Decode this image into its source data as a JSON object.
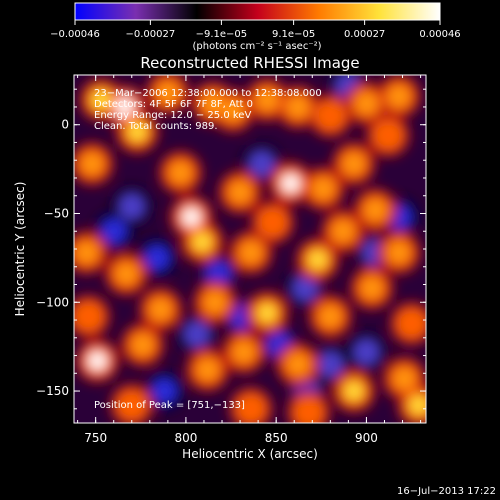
{
  "chart_data": {
    "type": "heatmap",
    "title": "Reconstructed RHESSI Image",
    "xlabel": "Heliocentric X (arcsec)",
    "ylabel": "Heliocentric Y (arcsec)",
    "xlim": [
      738,
      933
    ],
    "ylim": [
      -168,
      28
    ],
    "x_ticks": [
      750,
      800,
      850,
      900
    ],
    "x_tick_labels": [
      "750",
      "800",
      "850",
      "900"
    ],
    "y_ticks": [
      0,
      -50,
      -100,
      -150
    ],
    "y_tick_labels": [
      "0",
      "−50",
      "−100",
      "−150"
    ],
    "colorbar": {
      "min": -0.00046,
      "max": 0.00046,
      "tick_values": [
        -0.00046,
        -0.00027,
        -9.1e-05,
        9.1e-05,
        0.00027,
        0.00046
      ],
      "tick_labels": [
        "−0.00046",
        "−0.00027",
        "−9.1e−05",
        "9.1e−05",
        "0.00027",
        "0.00046"
      ],
      "unit_label": "(photons cm⁻² s⁻¹ asec⁻²)",
      "colors": [
        "#0000ff",
        "#7a2fb0",
        "#000000",
        "#c4001c",
        "#ff7a00",
        "#ffe23a",
        "#ffffff"
      ]
    },
    "info_lines": [
      "23−Mar−2006 12:38:00.000 to 12:38:08.000",
      "Detectors: 4F 5F 6F 7F 8F, Att 0",
      "Energy Range: 12.0 − 25.0 keV",
      "Clean.   Total counts: 989."
    ],
    "peak_label": "Position of Peak = [751,−133]",
    "peak": [
      751,
      -133
    ],
    "sources": [
      {
        "x": 751,
        "y": -133,
        "v": 1.0
      },
      {
        "x": 766,
        "y": 10,
        "v": 0.9
      },
      {
        "x": 753,
        "y": 14,
        "v": 0.8
      },
      {
        "x": 773,
        "y": -4,
        "v": 0.85
      },
      {
        "x": 790,
        "y": 18,
        "v": 0.7
      },
      {
        "x": 815,
        "y": 12,
        "v": 0.65
      },
      {
        "x": 826,
        "y": 8,
        "v": 0.7
      },
      {
        "x": 845,
        "y": 14,
        "v": 0.6
      },
      {
        "x": 862,
        "y": 10,
        "v": 0.6
      },
      {
        "x": 880,
        "y": 5,
        "v": 0.55
      },
      {
        "x": 900,
        "y": 12,
        "v": 0.65
      },
      {
        "x": 918,
        "y": 16,
        "v": 0.6
      },
      {
        "x": 912,
        "y": -6,
        "v": 0.55
      },
      {
        "x": 748,
        "y": -22,
        "v": 0.6
      },
      {
        "x": 797,
        "y": -27,
        "v": 0.7
      },
      {
        "x": 803,
        "y": -52,
        "v": 0.9
      },
      {
        "x": 809,
        "y": -66,
        "v": 0.85
      },
      {
        "x": 830,
        "y": -38,
        "v": 0.6
      },
      {
        "x": 858,
        "y": -33,
        "v": 0.95
      },
      {
        "x": 876,
        "y": -36,
        "v": 0.6
      },
      {
        "x": 893,
        "y": -22,
        "v": 0.7
      },
      {
        "x": 905,
        "y": -48,
        "v": 0.6
      },
      {
        "x": 848,
        "y": -55,
        "v": 0.55
      },
      {
        "x": 836,
        "y": -72,
        "v": 0.6
      },
      {
        "x": 873,
        "y": -76,
        "v": 0.75
      },
      {
        "x": 887,
        "y": -60,
        "v": 0.6
      },
      {
        "x": 918,
        "y": -72,
        "v": 0.7
      },
      {
        "x": 745,
        "y": -72,
        "v": 0.6
      },
      {
        "x": 767,
        "y": -84,
        "v": 0.65
      },
      {
        "x": 746,
        "y": -108,
        "v": 0.55
      },
      {
        "x": 786,
        "y": -104,
        "v": 0.7
      },
      {
        "x": 816,
        "y": -100,
        "v": 0.65
      },
      {
        "x": 845,
        "y": -106,
        "v": 0.75
      },
      {
        "x": 880,
        "y": -108,
        "v": 0.65
      },
      {
        "x": 903,
        "y": -92,
        "v": 0.6
      },
      {
        "x": 925,
        "y": -112,
        "v": 0.55
      },
      {
        "x": 776,
        "y": -124,
        "v": 0.6
      },
      {
        "x": 812,
        "y": -138,
        "v": 0.65
      },
      {
        "x": 832,
        "y": -128,
        "v": 0.6
      },
      {
        "x": 862,
        "y": -135,
        "v": 0.65
      },
      {
        "x": 893,
        "y": -150,
        "v": 0.8
      },
      {
        "x": 921,
        "y": -143,
        "v": 0.65
      },
      {
        "x": 929,
        "y": -158,
        "v": 0.8
      },
      {
        "x": 770,
        "y": -158,
        "v": 0.55
      },
      {
        "x": 836,
        "y": -160,
        "v": 0.55
      },
      {
        "x": 868,
        "y": -162,
        "v": 0.5
      }
    ],
    "troughs": [
      {
        "x": 760,
        "y": -60,
        "v": -0.8
      },
      {
        "x": 784,
        "y": -75,
        "v": -0.7
      },
      {
        "x": 818,
        "y": -84,
        "v": -0.8
      },
      {
        "x": 831,
        "y": -108,
        "v": -0.7
      },
      {
        "x": 866,
        "y": -92,
        "v": -0.6
      },
      {
        "x": 905,
        "y": -72,
        "v": -0.6
      },
      {
        "x": 918,
        "y": -52,
        "v": -0.85
      },
      {
        "x": 852,
        "y": -124,
        "v": -0.7
      },
      {
        "x": 806,
        "y": -118,
        "v": -0.6
      },
      {
        "x": 788,
        "y": -150,
        "v": -0.7
      },
      {
        "x": 770,
        "y": -46,
        "v": -0.55
      },
      {
        "x": 900,
        "y": -128,
        "v": -0.55
      },
      {
        "x": 880,
        "y": -135,
        "v": -0.5
      },
      {
        "x": 842,
        "y": -22,
        "v": -0.5
      },
      {
        "x": 890,
        "y": 22,
        "v": -0.45
      },
      {
        "x": 867,
        "y": -150,
        "v": -0.55
      }
    ]
  },
  "timestamp": "16−Jul−2013 17:22"
}
